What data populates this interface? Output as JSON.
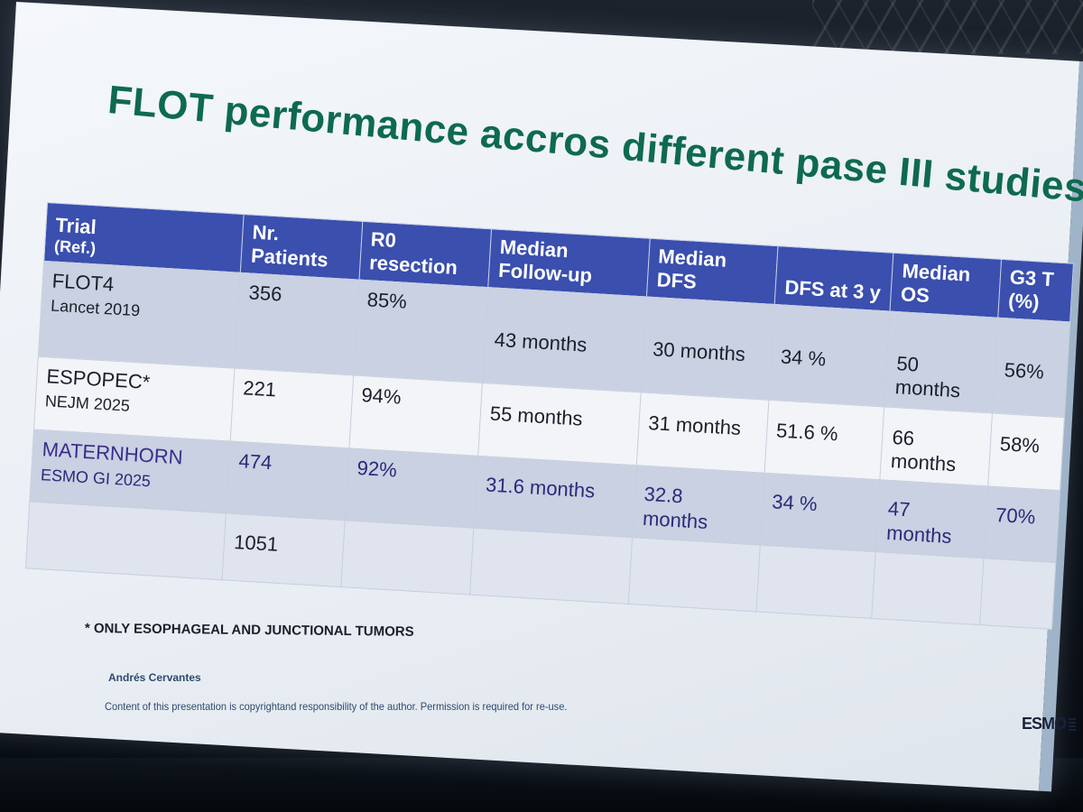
{
  "slide": {
    "title": "FLOT performance accros different pase III studies",
    "table": {
      "headers": [
        {
          "line1": "Trial",
          "line2": "(Ref.)"
        },
        {
          "line1": "Nr.",
          "line2": "Patients"
        },
        {
          "line1": "R0",
          "line2": "resection"
        },
        {
          "line1": "Median",
          "line2": "Follow-up"
        },
        {
          "line1": "Median",
          "line2": "DFS"
        },
        {
          "line1": "DFS at 3 y",
          "line2": ""
        },
        {
          "line1": "Median",
          "line2": "OS"
        },
        {
          "line1": "G3 T",
          "line2": "(%)"
        }
      ],
      "rows": [
        {
          "trial": "FLOT4",
          "ref": "Lancet 2019",
          "patients": "356",
          "r0": "85%",
          "followup": "43 months",
          "dfs": "30 months",
          "dfs3": "34 %",
          "os": "50 months",
          "g3": "56%"
        },
        {
          "trial": "ESPOPEC*",
          "ref": "NEJM 2025",
          "patients": "221",
          "r0": "94%",
          "followup": "55 months",
          "dfs": "31 months",
          "dfs3": "51.6 %",
          "os": "66 months",
          "g3": "58%"
        },
        {
          "trial": "MATERNHORN",
          "ref": "ESMO GI 2025",
          "patients": "474",
          "r0": "92%",
          "followup": "31.6 months",
          "dfs": "32.8 months",
          "dfs3": "34 %",
          "os": "47 months",
          "g3": "70%"
        },
        {
          "trial": "",
          "ref": "",
          "patients": "1051",
          "r0": "",
          "followup": "",
          "dfs": "",
          "dfs3": "",
          "os": "",
          "g3": ""
        }
      ]
    },
    "footnote": "* ONLY ESOPHAGEAL AND JUNCTIONAL TUMORS",
    "author": "Andrés Cervantes",
    "copyright": "Content of this presentation is copyrightand responsibility of the author. Permission is required for re-use.",
    "logo": "ESMO"
  },
  "colors": {
    "title": "#0e6a4f",
    "header_bg": "#3a4fae",
    "row_shade": "#c9d1e2",
    "row_light": "#f2f4f8",
    "text_footer": "#2e4a6e"
  }
}
